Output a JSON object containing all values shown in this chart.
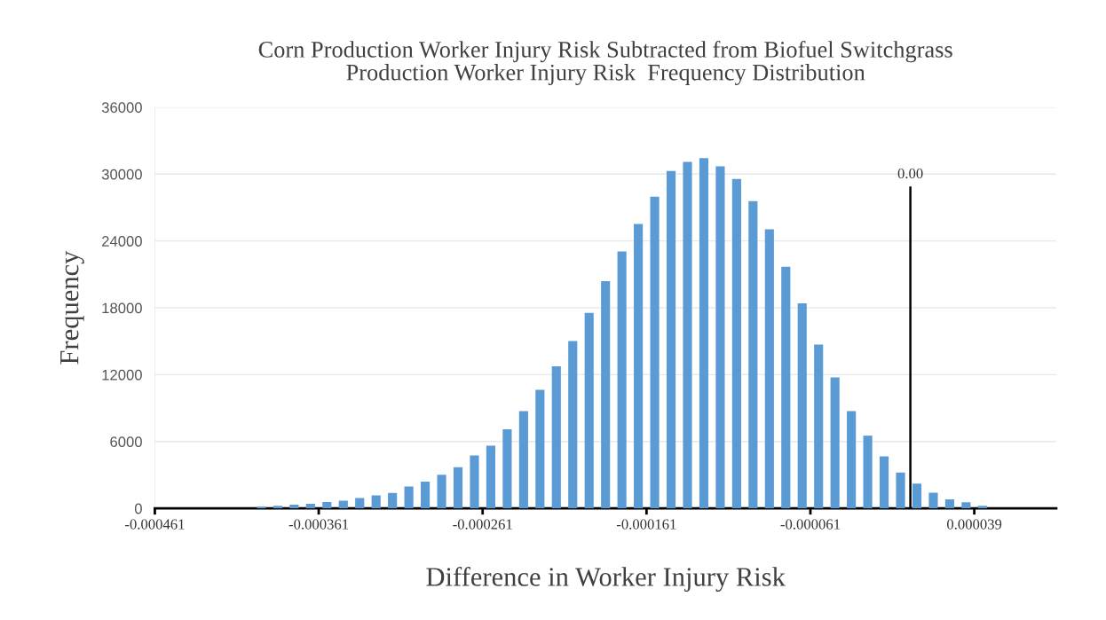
{
  "chart_data": {
    "type": "histogram",
    "title": "Corn Production Worker Injury Risk Subtracted from Biofuel Switchgrass\nProduction Worker Injury Risk  Frequency Distribution",
    "xlabel": "Difference in Worker Injury Risk",
    "ylabel": "Frequency",
    "bins": [
      -0.000461,
      -0.000451,
      -0.000441,
      -0.000431,
      -0.000421,
      -0.000411,
      -0.000401,
      -0.000391,
      -0.000381,
      -0.000371,
      -0.000361,
      -0.000351,
      -0.000341,
      -0.000331,
      -0.000321,
      -0.000311,
      -0.000301,
      -0.000291,
      -0.000281,
      -0.000271,
      -0.000261,
      -0.000251,
      -0.000241,
      -0.000231,
      -0.000221,
      -0.000211,
      -0.000201,
      -0.000191,
      -0.000181,
      -0.000171,
      -0.000161,
      -0.000151,
      -0.000141,
      -0.000131,
      -0.000121,
      -0.000111,
      -0.000101,
      -9.1e-05,
      -8.1e-05,
      -7.1e-05,
      -6.1e-05,
      -5.1e-05,
      -4.1e-05,
      -3.1e-05,
      -2.1e-05,
      -1.1e-05,
      -1e-06,
      9e-06,
      1.9e-05,
      2.9e-05,
      3.9e-05,
      4.9e-05,
      5.9e-05,
      6.9e-05,
      7.9e-05,
      8.9e-05
    ],
    "values": [
      0,
      0,
      0,
      0,
      0,
      0,
      150,
      240,
      330,
      420,
      580,
      700,
      930,
      1170,
      1380,
      1960,
      2410,
      3020,
      3690,
      4750,
      5630,
      7100,
      8730,
      10640,
      12760,
      15020,
      17540,
      20400,
      23060,
      25530,
      27970,
      30280,
      31100,
      31440,
      30700,
      29560,
      27570,
      25050,
      21680,
      18410,
      14700,
      11750,
      8730,
      6530,
      4670,
      3210,
      2230,
      1400,
      820,
      560,
      240,
      0,
      0,
      0,
      0
    ],
    "color": "#5b9bd5",
    "xlim": [
      -0.000461,
      8.9e-05
    ],
    "xticks": [
      {
        "value": -0.000461,
        "label": "-0.000461"
      },
      {
        "value": -0.000361,
        "label": "-0.000361"
      },
      {
        "value": -0.000261,
        "label": "-0.000261"
      },
      {
        "value": -0.000161,
        "label": "-0.000161"
      },
      {
        "value": -6.1e-05,
        "label": "-0.000061"
      },
      {
        "value": 3.9e-05,
        "label": "0.000039"
      }
    ],
    "ylim": [
      0,
      36000
    ],
    "yticks": [
      0,
      6000,
      12000,
      18000,
      24000,
      30000,
      36000
    ],
    "ref_lines": [
      {
        "axis": "x",
        "value": 0,
        "label": "0.00",
        "color": "#000000"
      }
    ],
    "grid": "y"
  }
}
